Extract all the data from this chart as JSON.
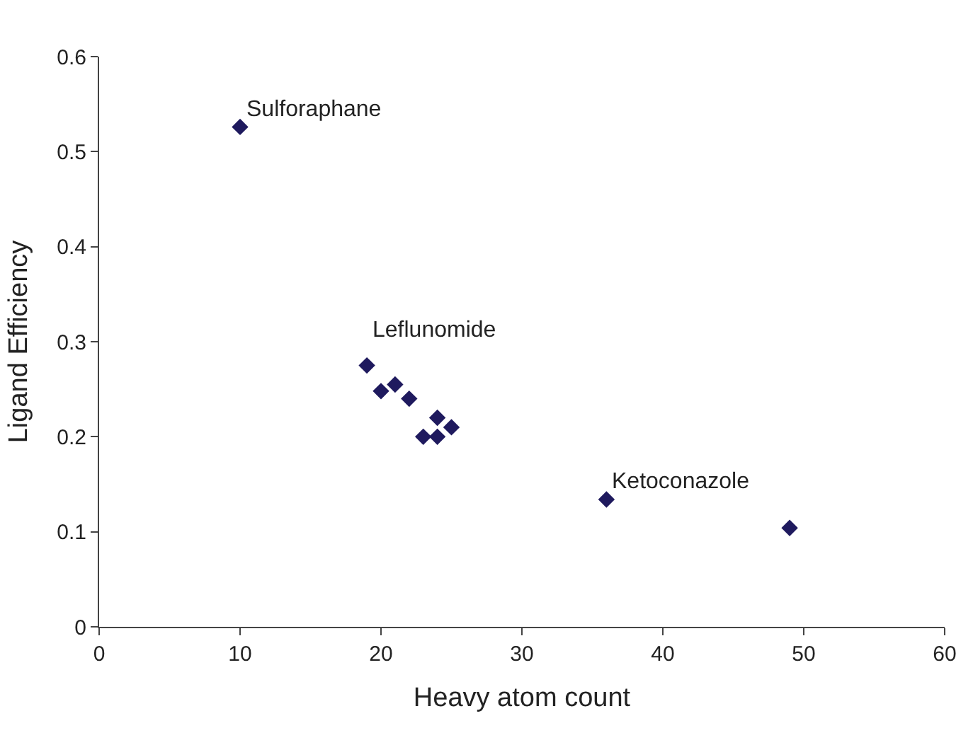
{
  "chart_data": {
    "type": "scatter",
    "xlabel": "Heavy atom count",
    "ylabel": "Ligand Efficiency",
    "x": [
      10,
      19,
      20,
      21,
      22,
      23,
      24,
      24,
      25,
      36,
      49
    ],
    "series": [
      {
        "color": "#1f1a5e",
        "values": [
          0.526,
          0.275,
          0.248,
          0.255,
          0.24,
          0.2,
          0.2,
          0.22,
          0.21,
          0.134,
          0.104
        ]
      }
    ],
    "marker": "diamond",
    "xlim": [
      0,
      60
    ],
    "xticks": [
      0,
      10,
      20,
      30,
      40,
      50,
      60
    ],
    "ylim": [
      0,
      0.6
    ],
    "yticks": [
      0,
      0.1,
      0.2,
      0.3,
      0.4,
      0.5,
      0.6
    ],
    "annotations": [
      {
        "text": "Sulforaphane",
        "x": 10,
        "y": 0.526
      },
      {
        "text": "Leflunomide",
        "x": 19,
        "y": 0.275
      },
      {
        "text": "Ketoconazole",
        "x": 36,
        "y": 0.134
      }
    ]
  }
}
